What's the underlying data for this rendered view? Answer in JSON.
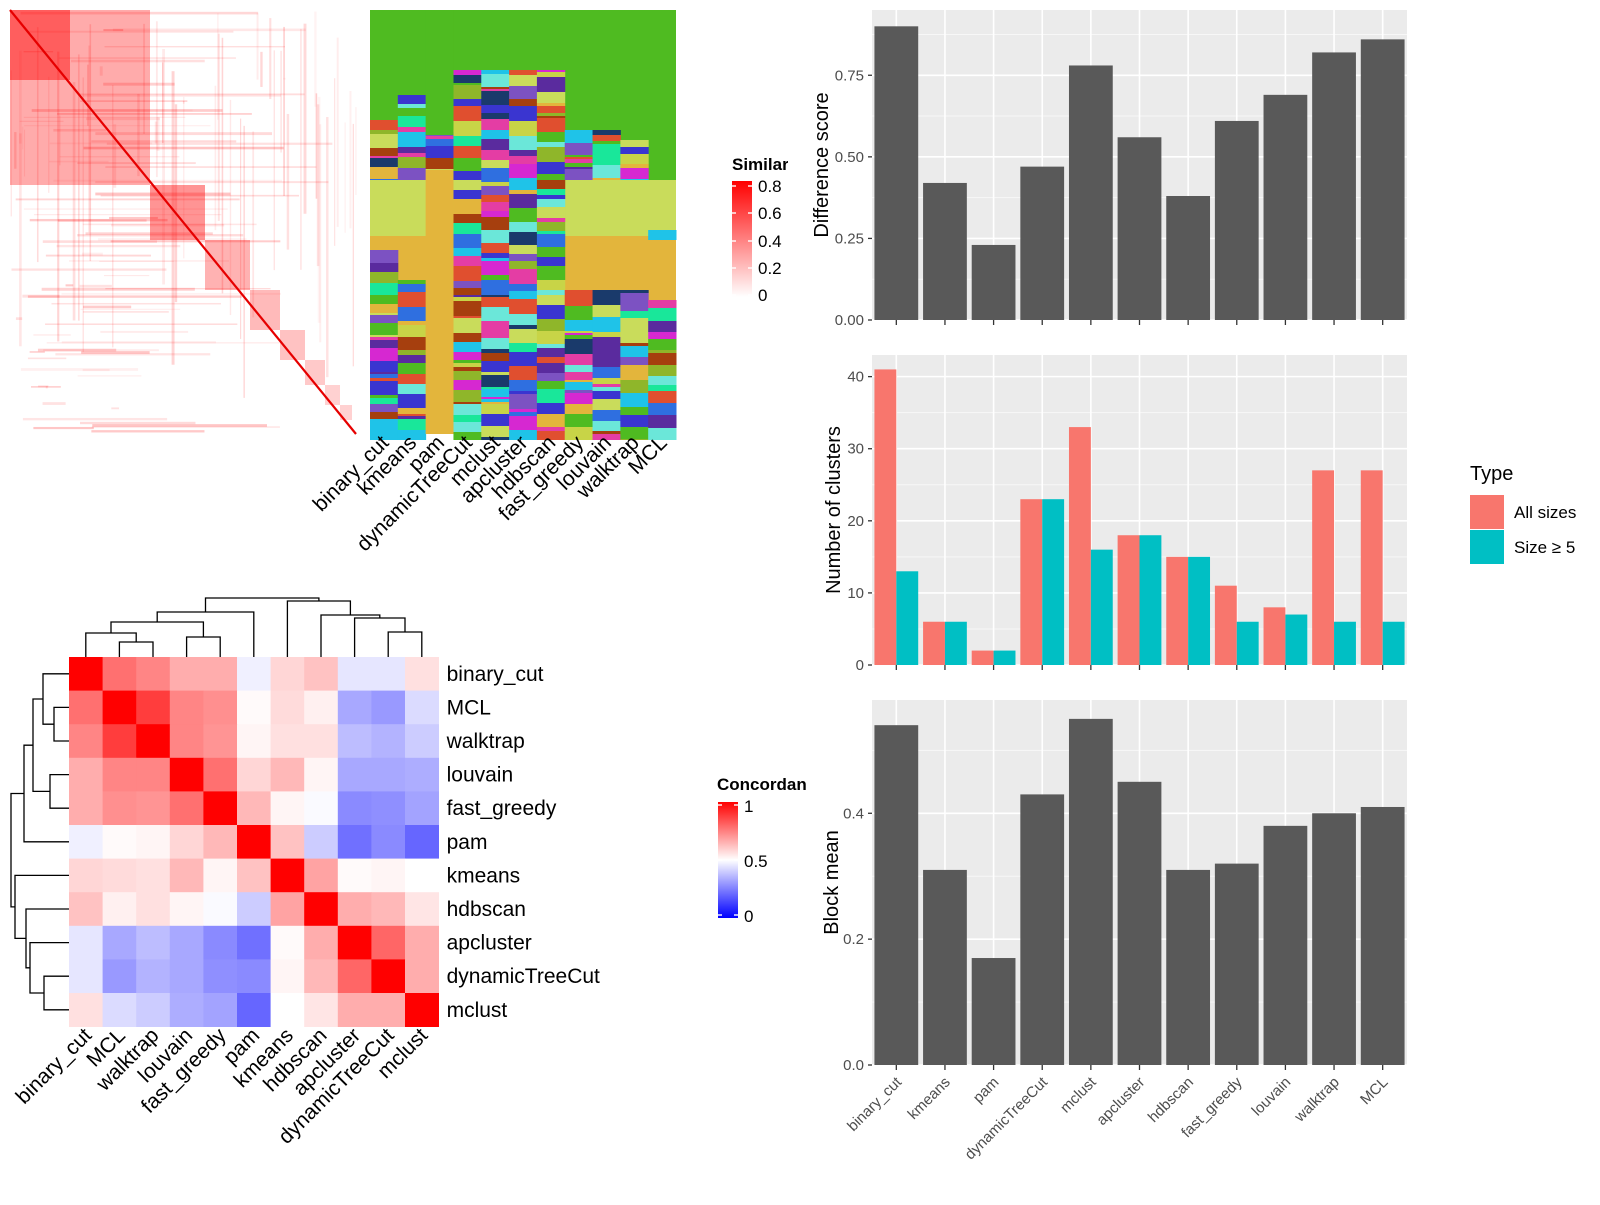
{
  "chart_data": [
    {
      "type": "heatmap",
      "panel": "similarity-matrix",
      "legend": {
        "title": "Similarity",
        "ticks": [
          "0",
          "0.2",
          "0.4",
          "0.6",
          "0.8"
        ],
        "colors": [
          "#ffffff",
          "#ff0000"
        ]
      },
      "columns": [
        "binary_cut",
        "kmeans",
        "pam",
        "dynamicTreeCut",
        "mclust",
        "apcluster",
        "hdbscan",
        "fast_greedy",
        "louvain",
        "walktrap",
        "MCL"
      ]
    },
    {
      "type": "heatmap",
      "panel": "concordance",
      "legend": {
        "title": "Concordance",
        "ticks": [
          "0",
          "0.5",
          "1"
        ],
        "colors": [
          "#0000ff",
          "#ffffff",
          "#ff0000"
        ]
      },
      "rows": [
        "binary_cut",
        "MCL",
        "walktrap",
        "louvain",
        "fast_greedy",
        "pam",
        "kmeans",
        "hdbscan",
        "apcluster",
        "dynamicTreeCut",
        "mclust"
      ],
      "columns": [
        "binary_cut",
        "MCL",
        "walktrap",
        "louvain",
        "fast_greedy",
        "pam",
        "kmeans",
        "hdbscan",
        "apcluster",
        "dynamicTreeCut",
        "mclust"
      ],
      "values": [
        [
          1.0,
          0.78,
          0.74,
          0.66,
          0.66,
          0.47,
          0.58,
          0.62,
          0.45,
          0.45,
          0.56
        ],
        [
          0.78,
          1.0,
          0.88,
          0.74,
          0.72,
          0.51,
          0.57,
          0.53,
          0.33,
          0.3,
          0.43
        ],
        [
          0.74,
          0.88,
          1.0,
          0.74,
          0.71,
          0.52,
          0.56,
          0.56,
          0.37,
          0.35,
          0.4
        ],
        [
          0.66,
          0.74,
          0.74,
          1.0,
          0.78,
          0.58,
          0.64,
          0.52,
          0.33,
          0.33,
          0.34
        ],
        [
          0.66,
          0.72,
          0.71,
          0.78,
          1.0,
          0.64,
          0.52,
          0.49,
          0.27,
          0.28,
          0.32
        ],
        [
          0.47,
          0.51,
          0.52,
          0.58,
          0.64,
          1.0,
          0.62,
          0.4,
          0.22,
          0.27,
          0.2
        ],
        [
          0.58,
          0.57,
          0.56,
          0.64,
          0.52,
          0.62,
          1.0,
          0.68,
          0.51,
          0.52,
          0.5
        ],
        [
          0.62,
          0.53,
          0.56,
          0.52,
          0.49,
          0.4,
          0.68,
          1.0,
          0.66,
          0.64,
          0.55
        ],
        [
          0.45,
          0.33,
          0.37,
          0.33,
          0.27,
          0.22,
          0.51,
          0.66,
          1.0,
          0.8,
          0.66
        ],
        [
          0.45,
          0.3,
          0.35,
          0.33,
          0.28,
          0.27,
          0.52,
          0.64,
          0.8,
          1.0,
          0.66
        ],
        [
          0.56,
          0.43,
          0.4,
          0.34,
          0.32,
          0.2,
          0.5,
          0.55,
          0.66,
          0.66,
          1.0
        ]
      ]
    },
    {
      "type": "bar",
      "panel": "difference-score",
      "categories": [
        "binary_cut",
        "kmeans",
        "pam",
        "dynamicTreeCut",
        "mclust",
        "apcluster",
        "hdbscan",
        "fast_greedy",
        "louvain",
        "walktrap",
        "MCL"
      ],
      "values": [
        0.9,
        0.42,
        0.23,
        0.47,
        0.78,
        0.56,
        0.38,
        0.61,
        0.69,
        0.82,
        0.86
      ],
      "ylabel": "Difference score",
      "ylim": [
        0,
        0.95
      ],
      "yticks": [
        "0.00",
        "0.25",
        "0.50",
        "0.75"
      ],
      "bar_color": "#595959"
    },
    {
      "type": "bar",
      "panel": "number-of-clusters",
      "categories": [
        "binary_cut",
        "kmeans",
        "pam",
        "dynamicTreeCut",
        "mclust",
        "apcluster",
        "hdbscan",
        "fast_greedy",
        "louvain",
        "walktrap",
        "MCL"
      ],
      "series": [
        {
          "name": "All sizes",
          "values": [
            41,
            6,
            2,
            23,
            33,
            18,
            15,
            11,
            8,
            27,
            27
          ],
          "color": "#F8766D"
        },
        {
          "name": "Size ≥ 5",
          "values": [
            13,
            6,
            2,
            23,
            16,
            18,
            15,
            6,
            7,
            6,
            6
          ],
          "color": "#00BFC4"
        }
      ],
      "ylabel": "Number of clusters",
      "ylim": [
        0,
        43
      ],
      "yticks": [
        "0",
        "10",
        "20",
        "30",
        "40"
      ],
      "legend": {
        "title": "Type",
        "position": "right"
      }
    },
    {
      "type": "bar",
      "panel": "block-mean",
      "categories": [
        "binary_cut",
        "kmeans",
        "pam",
        "dynamicTreeCut",
        "mclust",
        "apcluster",
        "hdbscan",
        "fast_greedy",
        "louvain",
        "walktrap",
        "MCL"
      ],
      "values": [
        0.54,
        0.31,
        0.17,
        0.43,
        0.55,
        0.45,
        0.31,
        0.32,
        0.38,
        0.4,
        0.41
      ],
      "ylabel": "Block mean",
      "ylim": [
        0,
        0.58
      ],
      "yticks": [
        "0.0",
        "0.2",
        "0.4"
      ],
      "bar_color": "#595959"
    }
  ]
}
